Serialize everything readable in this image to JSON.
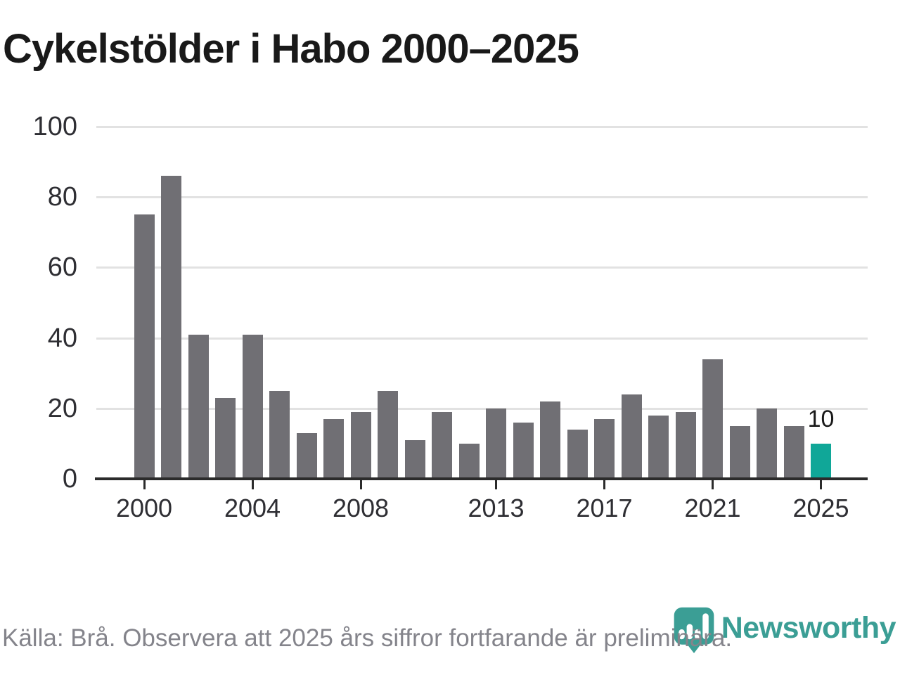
{
  "title": "Cykelstölder i Habo 2000–2025",
  "footer": {
    "source": "Källa: Brå. Observera att 2025 års siffror fortfarande är preliminära."
  },
  "logo": {
    "text": "Newsworthy",
    "icon": "bar-chart-pin-icon",
    "color": "#3b9e95"
  },
  "colors": {
    "bar": "#706f74",
    "highlight": "#10a798",
    "gridline": "#e2e2e2",
    "axis": "#2b2b2b",
    "tick_label": "#2e2e33",
    "title": "#191919",
    "footer": "#84848b"
  },
  "chart_data": {
    "type": "bar",
    "title": "Cykelstölder i Habo 2000–2025",
    "xlabel": "",
    "ylabel": "",
    "ylim": [
      0,
      100
    ],
    "grid": "horizontal",
    "legend": "none",
    "categories": [
      "2000",
      "2001",
      "2002",
      "2003",
      "2004",
      "2005",
      "2006",
      "2007",
      "2008",
      "2009",
      "2010",
      "2011",
      "2012",
      "2013",
      "2014",
      "2015",
      "2016",
      "2017",
      "2018",
      "2019",
      "2020",
      "2021",
      "2022",
      "2023",
      "2024",
      "2025"
    ],
    "values": [
      75,
      86,
      41,
      23,
      41,
      25,
      13,
      17,
      19,
      25,
      11,
      19,
      10,
      20,
      16,
      22,
      14,
      17,
      24,
      18,
      19,
      34,
      15,
      20,
      15,
      10
    ],
    "highlight_index": 25,
    "highlight_value_label": "10",
    "y_ticks": [
      0,
      20,
      40,
      60,
      80,
      100
    ],
    "x_tick_labels": [
      "2000",
      "2004",
      "2008",
      "2013",
      "2017",
      "2021",
      "2025"
    ],
    "x_tick_years": [
      2000,
      2004,
      2008,
      2013,
      2017,
      2021,
      2025
    ]
  }
}
